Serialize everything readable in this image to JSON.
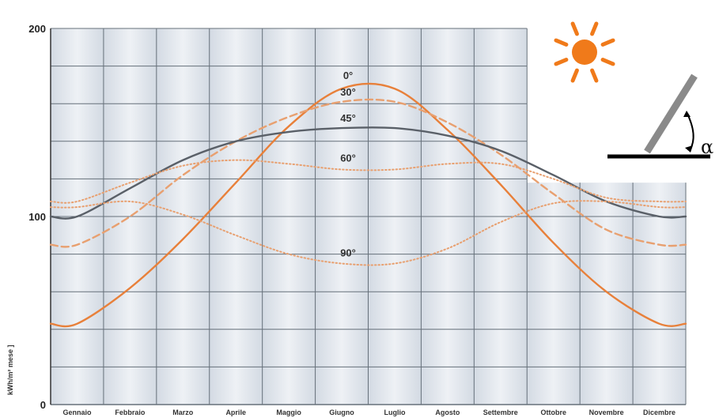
{
  "chart_data": {
    "type": "line",
    "title": "",
    "ylabel": "kWh/m² mese ]",
    "xlabel": "",
    "ylim": [
      0,
      200
    ],
    "yticks": [
      "0",
      "100",
      "200"
    ],
    "grid": true,
    "categories": [
      "Gennaio",
      "Febbraio",
      "Marzo",
      "Aprile",
      "Maggio",
      "Giugno",
      "Luglio",
      "Agosto",
      "Settembre",
      "Ottobre",
      "Novembre",
      "Dicembre"
    ],
    "series": [
      {
        "name": "0°",
        "style": "solid",
        "color": "#e8803a",
        "values": [
          43,
          62,
          88,
          118,
          148,
          168,
          168,
          146,
          117,
          86,
          60,
          43
        ]
      },
      {
        "name": "30°",
        "style": "dashed",
        "color": "#e8a070",
        "values": [
          85,
          100,
          122,
          140,
          153,
          161,
          161,
          150,
          133,
          112,
          93,
          85
        ]
      },
      {
        "name": "45°",
        "style": "solid",
        "color": "#5a6068",
        "values": [
          100,
          115,
          130,
          140,
          145,
          147,
          147,
          143,
          135,
          122,
          108,
          100
        ]
      },
      {
        "name": "60°",
        "style": "dotted",
        "color": "#e8a070",
        "values": [
          108,
          118,
          127,
          130,
          128,
          125,
          125,
          128,
          128,
          120,
          110,
          108
        ]
      },
      {
        "name": "90°",
        "style": "dotted",
        "color": "#e8a070",
        "values": [
          105,
          108,
          101,
          90,
          80,
          75,
          75,
          83,
          97,
          107,
          108,
          105
        ]
      }
    ],
    "annotation_symbol": "α",
    "colors": {
      "background": "#dfe5ec",
      "grid": "#66707a",
      "sun": "#f07a1a",
      "panel": "#8a8a8a"
    }
  }
}
